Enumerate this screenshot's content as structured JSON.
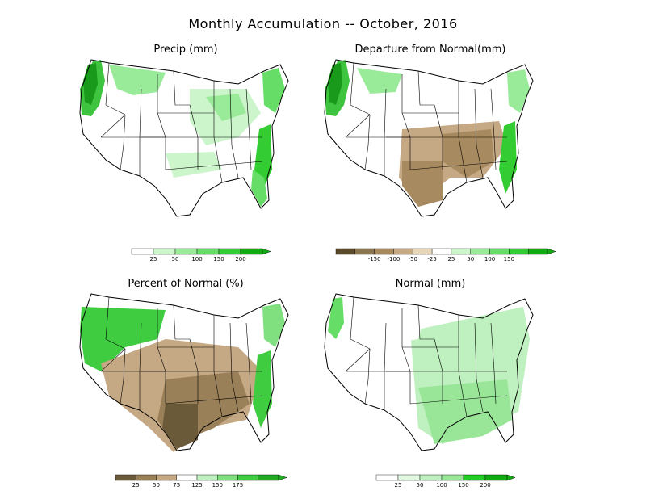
{
  "title": "Monthly Accumulation -- October, 2016",
  "panels": [
    {
      "id": "precip",
      "title": "Precip (mm)",
      "legend": {
        "under_color": "#ffffff",
        "colors": [
          "#ffffff",
          "#ccf5cc",
          "#99ea99",
          "#66dd66",
          "#33cc33",
          "#11aa11"
        ],
        "ticks": [
          "25",
          "50",
          "100",
          "150",
          "200"
        ]
      }
    },
    {
      "id": "departure",
      "title": "Departure from Normal(mm)",
      "legend": {
        "colors": [
          "#5a4a2a",
          "#8a7550",
          "#a88a60",
          "#c5a884",
          "#e8d6b8",
          "#ffffff",
          "#ccf5cc",
          "#99ea99",
          "#66dd66",
          "#33cc33",
          "#11aa11"
        ],
        "ticks": [
          "-150",
          "-100",
          "-50",
          "-25",
          "25",
          "50",
          "100",
          "150"
        ]
      }
    },
    {
      "id": "percent",
      "title": "Percent of Normal (%)",
      "legend": {
        "colors": [
          "#6b5a3a",
          "#9a8058",
          "#c5a884",
          "#ffffff",
          "#bff0bf",
          "#80e080",
          "#40cc40",
          "#22aa22"
        ],
        "ticks": [
          "25",
          "50",
          "75",
          "125",
          "150",
          "175"
        ]
      }
    },
    {
      "id": "normal",
      "title": "Normal (mm)",
      "legend": {
        "under_color": "#ffffff",
        "colors": [
          "#ffffff",
          "#e0f8e0",
          "#bff0bf",
          "#99e699",
          "#22cc22",
          "#11aa11"
        ],
        "ticks": [
          "25",
          "50",
          "100",
          "150",
          "200"
        ]
      }
    }
  ],
  "colors": {
    "map_border": "#000000",
    "wet": "#3fc43f",
    "very_wet": "#1a9a1a",
    "light_wet": "#aeeeae",
    "dry": "#a88a60",
    "very_dry": "#6b5a3a"
  }
}
